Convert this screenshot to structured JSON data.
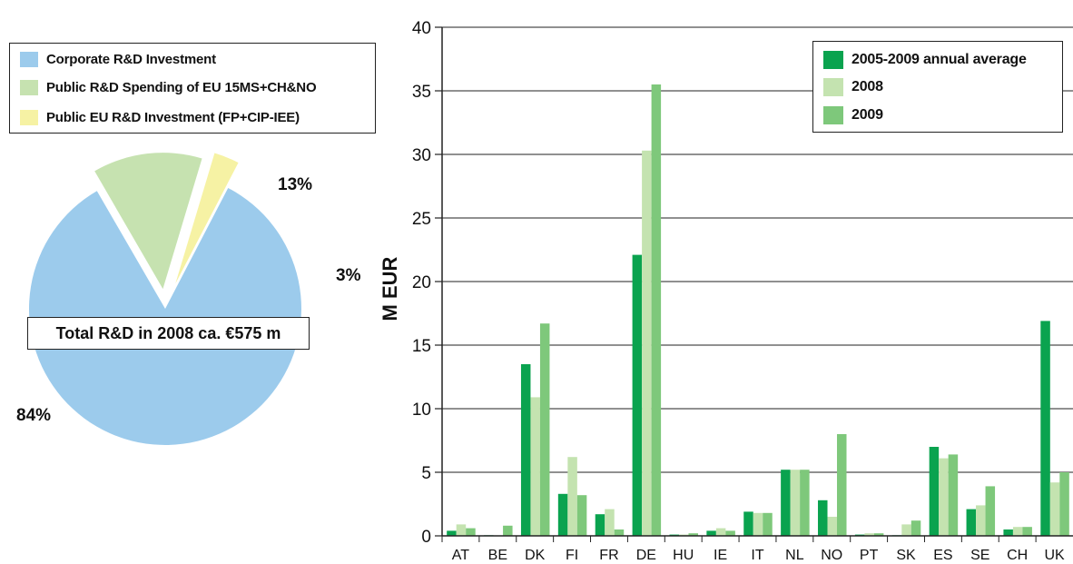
{
  "chart_data": [
    {
      "type": "pie",
      "legend": [
        "Corporate R&D Investment",
        "Public R&D Spending of EU 15MS+CH&NO",
        "Public EU R&D Investment (FP+CIP-IEE)"
      ],
      "slices": [
        {
          "label": "Corporate R&D Investment",
          "value": 84,
          "text": "84%",
          "color": "#9ccbec"
        },
        {
          "label": "Public R&D Spending of EU 15MS+CH&NO",
          "value": 13,
          "text": "13%",
          "color": "#c6e2b0"
        },
        {
          "label": "Public EU R&D Investment (FP+CIP-IEE)",
          "value": 3,
          "text": "3%",
          "color": "#f6f2a4"
        }
      ],
      "annotation": "Total R&D in 2008 ca. €575 m"
    },
    {
      "type": "bar",
      "categories": [
        "AT",
        "BE",
        "DK",
        "FI",
        "FR",
        "DE",
        "HU",
        "IE",
        "IT",
        "NL",
        "NO",
        "PT",
        "SK",
        "ES",
        "SE",
        "CH",
        "UK"
      ],
      "series": [
        {
          "name": "2005-2009 annual average",
          "color": "#0aa34f",
          "values": [
            0.4,
            0.05,
            13.5,
            3.3,
            1.7,
            22.1,
            0.1,
            0.4,
            1.9,
            5.2,
            2.8,
            0.1,
            0.05,
            7.0,
            2.1,
            0.5,
            16.9
          ]
        },
        {
          "name": "2008",
          "color": "#c4e3b0",
          "values": [
            0.9,
            0.0,
            10.9,
            6.2,
            2.1,
            30.3,
            0.1,
            0.6,
            1.8,
            5.2,
            1.5,
            0.2,
            0.9,
            6.1,
            2.4,
            0.7,
            4.2
          ]
        },
        {
          "name": "2009",
          "color": "#7ec87b",
          "values": [
            0.6,
            0.8,
            16.7,
            3.2,
            0.5,
            35.5,
            0.2,
            0.4,
            1.8,
            5.2,
            8.0,
            0.2,
            1.2,
            6.4,
            3.9,
            0.7,
            5.0
          ]
        }
      ],
      "ylabel": "M EUR",
      "ylim": [
        0,
        40
      ],
      "yticks": [
        0,
        5,
        10,
        15,
        20,
        25,
        30,
        35,
        40
      ],
      "grid": true,
      "legend_position": "top-right"
    }
  ]
}
